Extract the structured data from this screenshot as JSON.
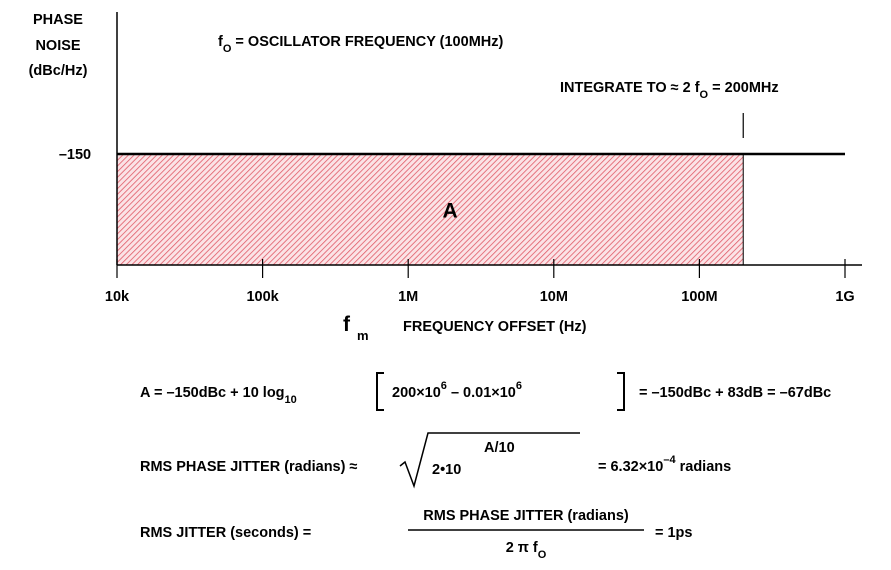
{
  "chart_data": {
    "type": "line",
    "y_label": [
      "PHASE",
      "NOISE",
      "(dBc/Hz)"
    ],
    "x_label": [
      "f",
      "m",
      "FREQUENCY OFFSET (Hz)"
    ],
    "annotation_fo": [
      "f",
      "O",
      " = OSCILLATOR FREQUENCY (100MHz)"
    ],
    "annotation_integrate": [
      "INTEGRATE TO ≈ 2 f",
      "O",
      " = 200MHz"
    ],
    "xscale": "log",
    "x": [
      10000,
      1000000000
    ],
    "series": [
      {
        "color": "#000000",
        "values": [
          -150,
          -150
        ]
      }
    ],
    "area": {
      "label": "A",
      "x": [
        10000,
        200000000
      ],
      "values": [
        -150,
        -150
      ],
      "color": "#e05a66"
    },
    "xlim": [
      10000,
      1000000000
    ],
    "xticks": [
      {
        "value": 10000,
        "label": "10k"
      },
      {
        "value": 100000,
        "label": "100k"
      },
      {
        "value": 1000000,
        "label": "1M"
      },
      {
        "value": 10000000,
        "label": "10M"
      },
      {
        "value": 100000000,
        "label": "100M"
      },
      {
        "value": 1000000000,
        "label": "1G"
      }
    ],
    "ylim": [
      -175,
      -118
    ],
    "yticks": [
      {
        "value": -150,
        "label": "–150"
      }
    ]
  },
  "equations": {
    "eq1": [
      "A = –150dBc + 10 log",
      "10",
      "200×10",
      "6",
      " – 0.01×10",
      "6",
      "= –150dBc + 83dB = –67dBc"
    ],
    "eq2": [
      "RMS PHASE JITTER (radians) ≈",
      "2•10",
      "A/10",
      "= 6.32×10",
      "–4",
      " radians"
    ],
    "eq3": [
      "RMS JITTER (seconds) =",
      "RMS PHASE JITTER (radians)",
      "2 π f",
      "O",
      "= 1ps"
    ]
  }
}
